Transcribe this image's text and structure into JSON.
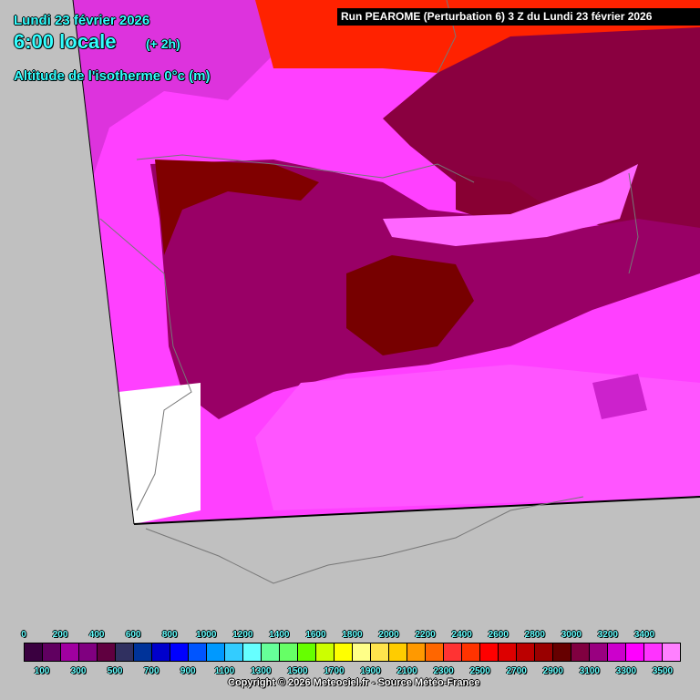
{
  "header": {
    "date": "Lundi 23 février 2026",
    "time": "6:00 locale",
    "offset": "(+ 2h)",
    "parameter": "Altitude de l'isotherme 0°c (m)",
    "run": "Run PEAROME (Perturbation 6) 3 Z du Lundi 23 février 2026"
  },
  "legend": {
    "top_labels": [
      "0",
      "200",
      "400",
      "600",
      "800",
      "1000",
      "1200",
      "1400",
      "1600",
      "1800",
      "2000",
      "2200",
      "2400",
      "2600",
      "2800",
      "3000",
      "3200",
      "3400"
    ],
    "bottom_labels": [
      "100",
      "300",
      "500",
      "700",
      "900",
      "1100",
      "1300",
      "1500",
      "1700",
      "1900",
      "2100",
      "2300",
      "2500",
      "2700",
      "2900",
      "3100",
      "3300",
      "3500"
    ],
    "colors": [
      "#3a0040",
      "#600060",
      "#a000a0",
      "#800080",
      "#600040",
      "#303060",
      "#003399",
      "#0000cc",
      "#0000ff",
      "#0055ff",
      "#0099ff",
      "#33ccff",
      "#66ffff",
      "#66ff99",
      "#66ff66",
      "#66ff00",
      "#ccff00",
      "#ffff00",
      "#ffff88",
      "#ffe44c",
      "#ffcc00",
      "#ff9900",
      "#ff6600",
      "#ff3333",
      "#ff3300",
      "#ff0000",
      "#dd0000",
      "#bb0000",
      "#990000",
      "#660000",
      "#800040",
      "#990080",
      "#cc00cc",
      "#ff00ff",
      "#ff33ff",
      "#ff80ff"
    ]
  },
  "copyright": "Copyright © 2026 Meteociel.fr - Source Météo-France"
}
